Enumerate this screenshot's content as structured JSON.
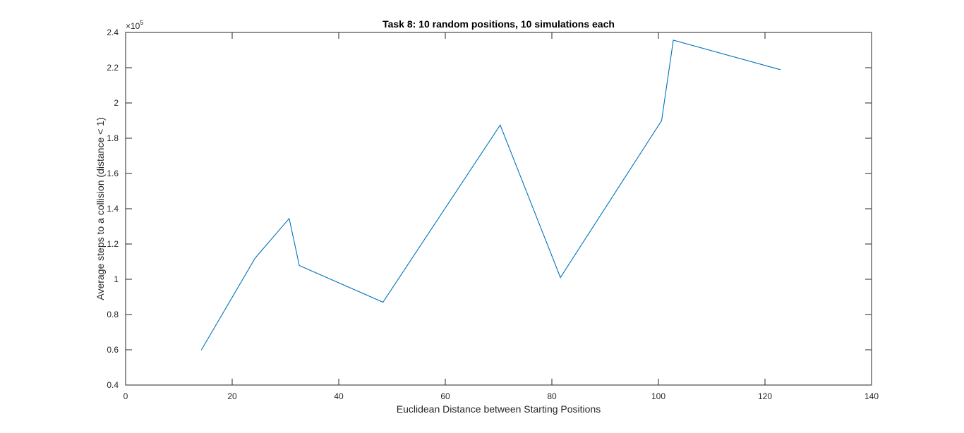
{
  "chart_data": {
    "type": "line",
    "title": "Task 8: 10 random positions, 10 simulations each",
    "xlabel": "Euclidean Distance between Starting Positions",
    "ylabel": "Average steps to a collision (distance < 1)",
    "xlim": [
      0,
      140
    ],
    "ylim": [
      40000,
      240000
    ],
    "x_ticks": [
      0,
      20,
      40,
      60,
      80,
      100,
      120,
      140
    ],
    "y_ticks": [
      40000,
      60000,
      80000,
      100000,
      120000,
      140000,
      160000,
      180000,
      200000,
      220000,
      240000
    ],
    "y_tick_labels": [
      "0.4",
      "0.6",
      "0.8",
      "1",
      "1.2",
      "1.4",
      "1.6",
      "1.8",
      "2",
      "2.2",
      "2.4"
    ],
    "y_exponent_base": "×10",
    "y_exponent_power": "5",
    "grid": false,
    "colors": {
      "line": "#0072bd",
      "axis": "#262626"
    },
    "series": [
      {
        "x": [
          14.2,
          24.3,
          30.7,
          32.6,
          48.3,
          70.3,
          81.6,
          100.6,
          102.8,
          122.9
        ],
        "values": [
          59800,
          112000,
          134500,
          107800,
          87000,
          187500,
          101000,
          190000,
          235600,
          218900
        ]
      }
    ]
  }
}
